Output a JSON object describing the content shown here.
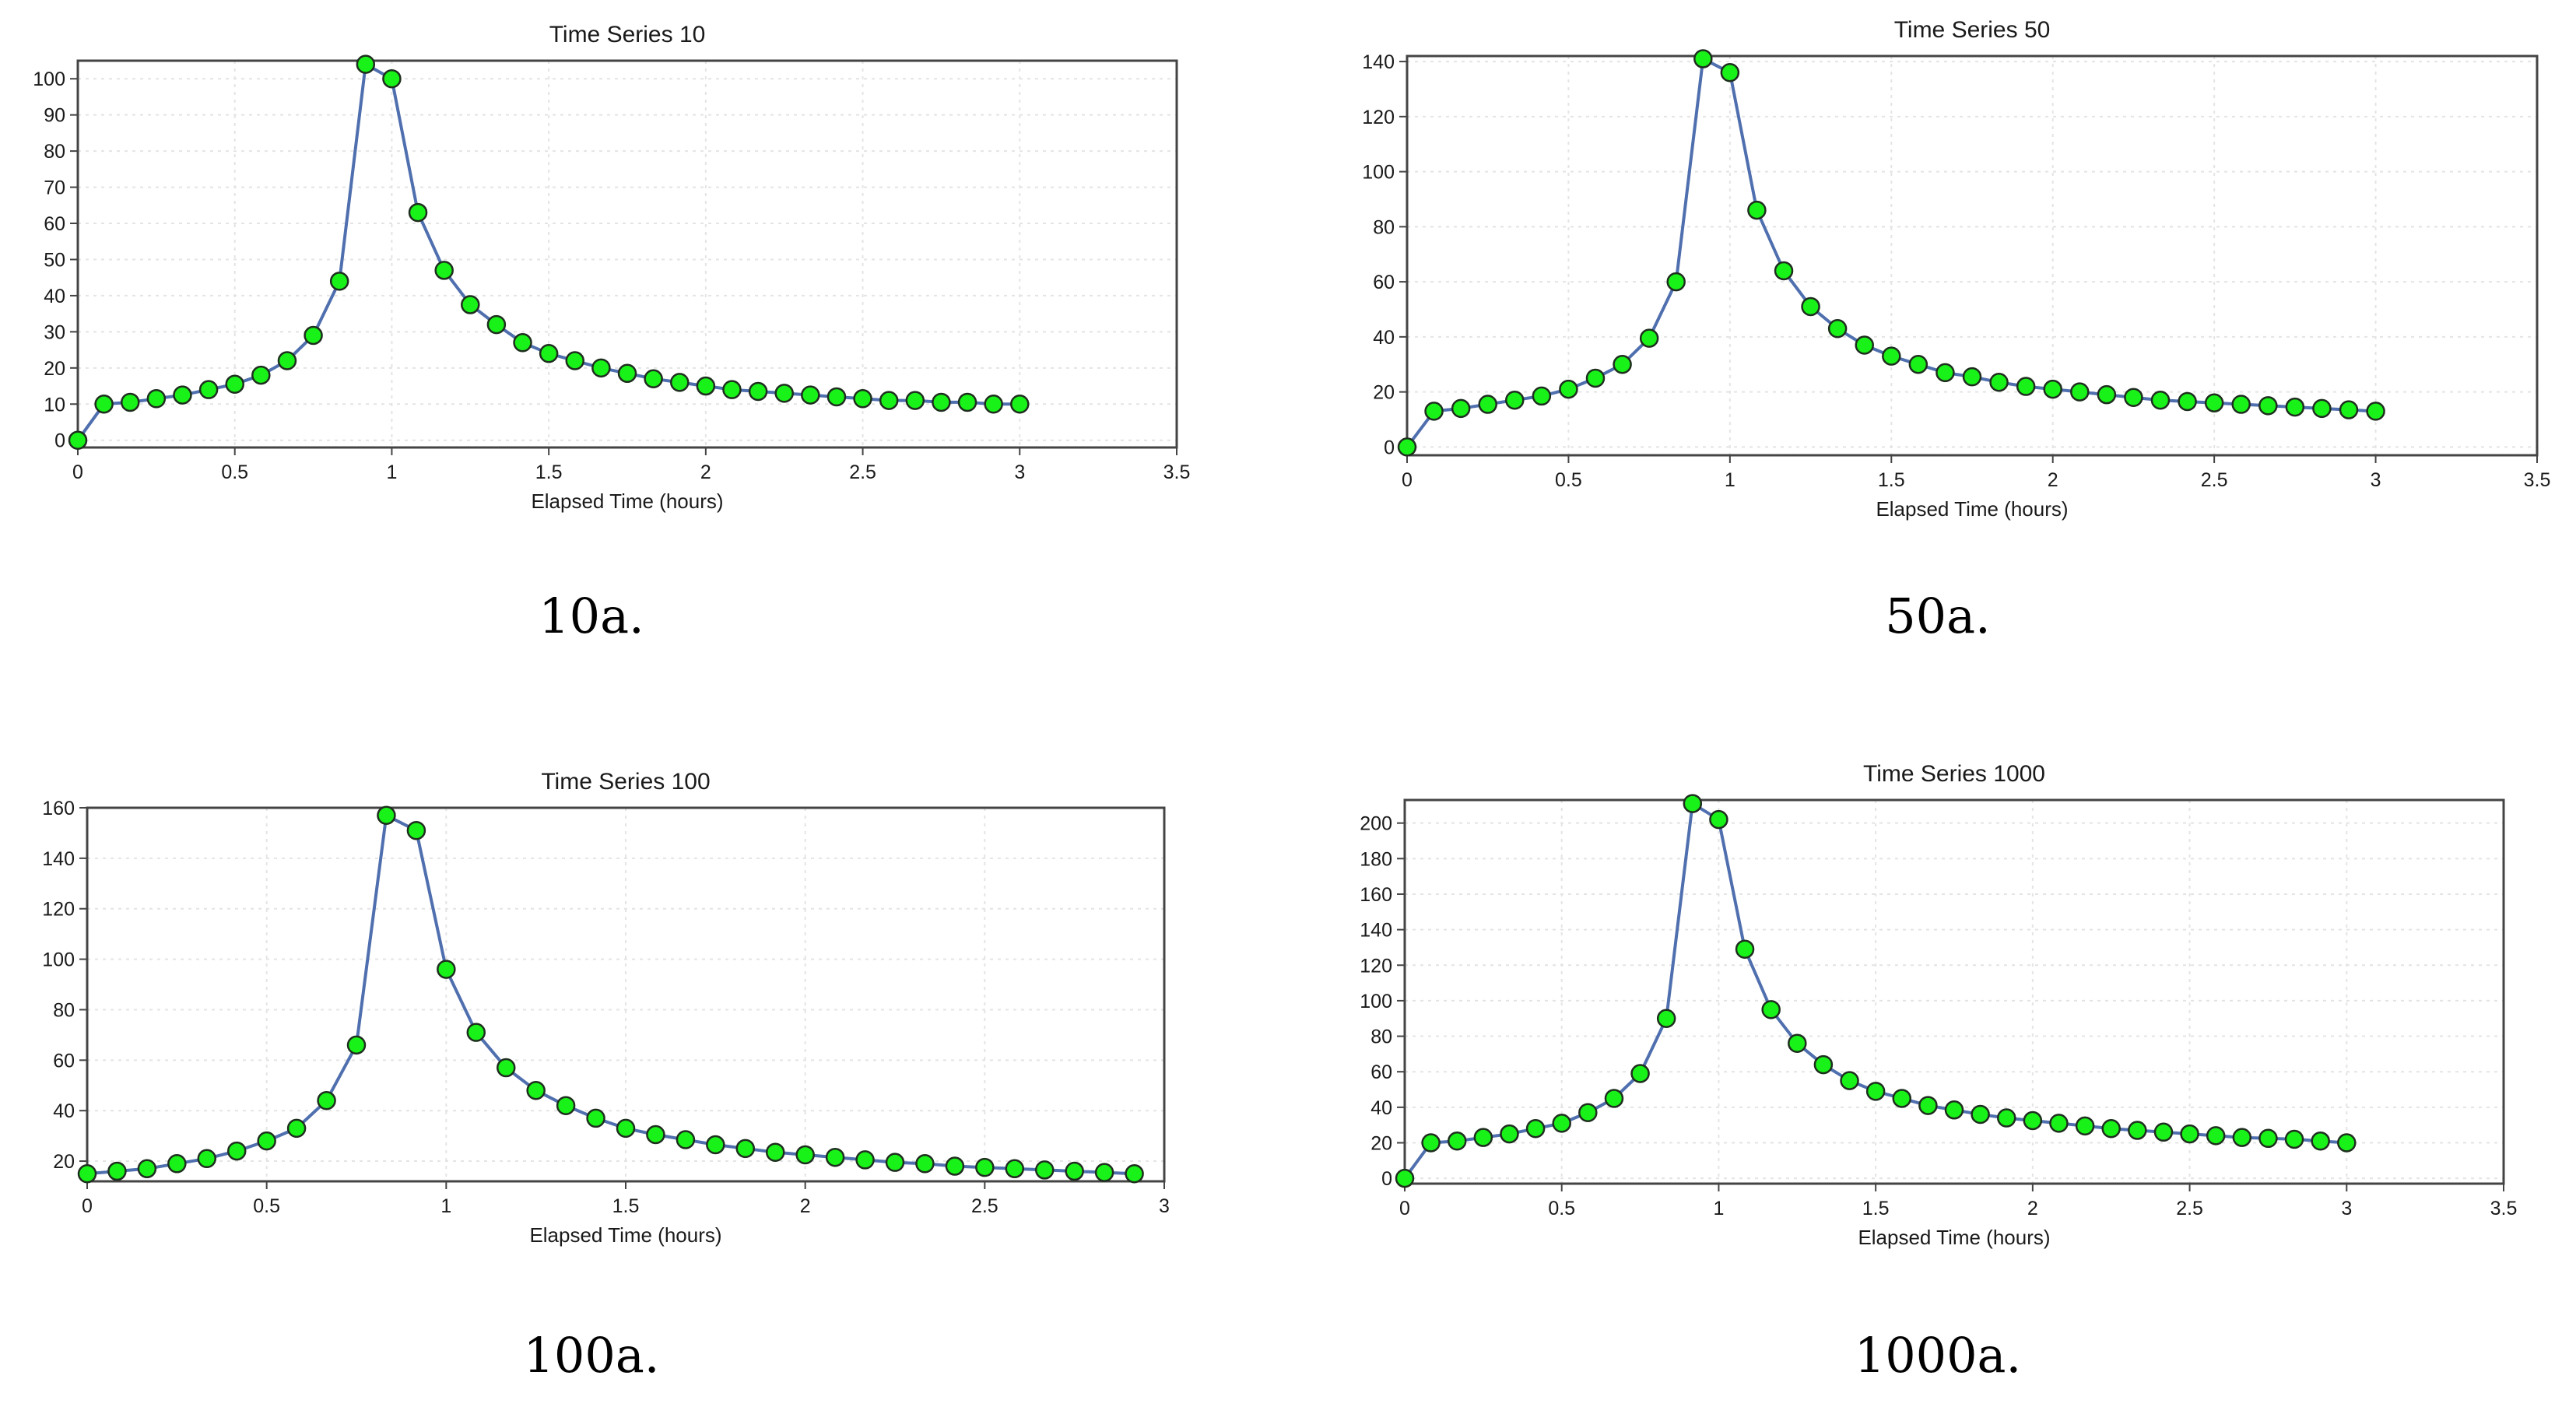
{
  "chart_data": [
    {
      "type": "line",
      "title": "Time Series 10",
      "caption": "10a.",
      "xlabel": "Elapsed Time (hours)",
      "ylabel": "",
      "xlim": [
        0,
        3.5
      ],
      "ylim": [
        -2,
        105
      ],
      "xticks": [
        0,
        0.5,
        1,
        1.5,
        2,
        2.5,
        3,
        3.5
      ],
      "yticks": [
        0,
        10,
        20,
        30,
        40,
        50,
        60,
        70,
        80,
        90,
        100
      ],
      "grid": true,
      "x": [
        0,
        0.0833,
        0.1667,
        0.25,
        0.3333,
        0.4167,
        0.5,
        0.5833,
        0.6667,
        0.75,
        0.8333,
        0.9167,
        1,
        1.0833,
        1.1667,
        1.25,
        1.3333,
        1.4167,
        1.5,
        1.5833,
        1.6667,
        1.75,
        1.8333,
        1.9167,
        2,
        2.0833,
        2.1667,
        2.25,
        2.3333,
        2.4167,
        2.5,
        2.5833,
        2.6667,
        2.75,
        2.8333,
        2.9167,
        3
      ],
      "values": [
        0,
        10,
        10.5,
        11.5,
        12.5,
        14,
        15.5,
        18,
        22,
        29,
        44,
        104,
        100,
        63,
        47,
        37.5,
        32,
        27,
        24,
        22,
        20,
        18.5,
        17,
        16,
        15,
        14,
        13.5,
        13,
        12.5,
        12,
        11.5,
        11,
        11,
        10.5,
        10.5,
        10,
        10
      ]
    },
    {
      "type": "line",
      "title": "Time Series 50",
      "caption": "50a.",
      "xlabel": "Elapsed Time (hours)",
      "ylabel": "",
      "xlim": [
        0,
        3.5
      ],
      "ylim": [
        -3,
        142
      ],
      "xticks": [
        0,
        0.5,
        1,
        1.5,
        2,
        2.5,
        3,
        3.5
      ],
      "yticks": [
        0,
        20,
        40,
        60,
        80,
        100,
        120,
        140
      ],
      "grid": true,
      "x": [
        0,
        0.0833,
        0.1667,
        0.25,
        0.3333,
        0.4167,
        0.5,
        0.5833,
        0.6667,
        0.75,
        0.8333,
        0.9167,
        1,
        1.0833,
        1.1667,
        1.25,
        1.3333,
        1.4167,
        1.5,
        1.5833,
        1.6667,
        1.75,
        1.8333,
        1.9167,
        2,
        2.0833,
        2.1667,
        2.25,
        2.3333,
        2.4167,
        2.5,
        2.5833,
        2.6667,
        2.75,
        2.8333,
        2.9167,
        3
      ],
      "values": [
        0,
        13,
        14,
        15.5,
        17,
        18.5,
        21,
        25,
        30,
        39.5,
        60,
        141,
        136,
        86,
        64,
        51,
        43,
        37,
        33,
        30,
        27,
        25.5,
        23.5,
        22,
        21,
        20,
        19,
        18,
        17,
        16.5,
        16,
        15.5,
        15,
        14.5,
        14,
        13.5,
        13
      ]
    },
    {
      "type": "line",
      "title": "Time Series 100",
      "caption": "100a.",
      "xlabel": "Elapsed Time (hours)",
      "ylabel": "",
      "xlim": [
        0,
        3
      ],
      "ylim": [
        12,
        160
      ],
      "xticks": [
        0,
        0.5,
        1,
        1.5,
        2,
        2.5,
        3
      ],
      "yticks": [
        20,
        40,
        60,
        80,
        100,
        120,
        140,
        160
      ],
      "grid": true,
      "x": [
        0,
        0.0833,
        0.1667,
        0.25,
        0.3333,
        0.4167,
        0.5,
        0.5833,
        0.6667,
        0.75,
        0.8333,
        0.9167,
        1,
        1.0833,
        1.1667,
        1.25,
        1.3333,
        1.4167,
        1.5,
        1.5833,
        1.6667,
        1.75,
        1.8333,
        1.9167,
        2,
        2.0833,
        2.1667,
        2.25,
        2.3333,
        2.4167,
        2.5,
        2.5833,
        2.6667,
        2.75,
        2.8333,
        2.9167
      ],
      "values": [
        15,
        16,
        17,
        19,
        21,
        24,
        28,
        33,
        44,
        66,
        157,
        151,
        96,
        71,
        57,
        48,
        42,
        37,
        33,
        30.5,
        28.5,
        26.5,
        25,
        23.5,
        22.5,
        21.5,
        20.5,
        19.5,
        19,
        18,
        17.5,
        17,
        16.5,
        16,
        15.5,
        15
      ]
    },
    {
      "type": "line",
      "title": "Time Series 1000",
      "caption": "1000a.",
      "xlabel": "Elapsed Time (hours)",
      "ylabel": "",
      "xlim": [
        0,
        3.5
      ],
      "ylim": [
        -3,
        213
      ],
      "xticks": [
        0,
        0.5,
        1,
        1.5,
        2,
        2.5,
        3,
        3.5
      ],
      "yticks": [
        0,
        20,
        40,
        60,
        80,
        100,
        120,
        140,
        160,
        180,
        200
      ],
      "grid": true,
      "x": [
        0,
        0.0833,
        0.1667,
        0.25,
        0.3333,
        0.4167,
        0.5,
        0.5833,
        0.6667,
        0.75,
        0.8333,
        0.9167,
        1,
        1.0833,
        1.1667,
        1.25,
        1.3333,
        1.4167,
        1.5,
        1.5833,
        1.6667,
        1.75,
        1.8333,
        1.9167,
        2,
        2.0833,
        2.1667,
        2.25,
        2.3333,
        2.4167,
        2.5,
        2.5833,
        2.6667,
        2.75,
        2.8333,
        2.9167,
        3
      ],
      "values": [
        0,
        20,
        21,
        23,
        25,
        28,
        31,
        37,
        45,
        59,
        90,
        211,
        202,
        129,
        95,
        76,
        64,
        55,
        49,
        45,
        41,
        38.5,
        36,
        34,
        32.5,
        31,
        29.5,
        28,
        27,
        26,
        25,
        24,
        23,
        22.5,
        22,
        21,
        20
      ]
    }
  ]
}
